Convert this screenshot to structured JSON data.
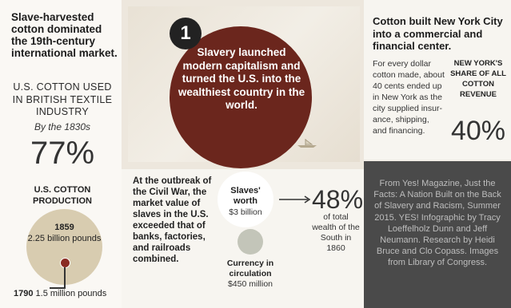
{
  "left": {
    "intro": "Slave-harvested cotton dominated the 19th-century international market.",
    "cotton_used": "U.S. COTTON USED IN BRITISH TEXTILE INDUSTRY",
    "by_1830s": "By the 1830s",
    "pct": "77%",
    "cotton_production": "U.S. COTTON PRODUCTION",
    "year_1859": "1859",
    "amount_1859": "2.25 billion pounds",
    "year_1790": "1790",
    "amount_1790": "1.5 million pounds"
  },
  "middle": {
    "number": "1",
    "headline": "Slavery launched modern capitalism and turned the U.S. into the wealthiest country in the world.",
    "civil_war": "At the outbreak of the Civil War, the market value of slaves in the U.S. exceeded that of banks, factories, and railroads combined.",
    "slaves_worth_label": "Slaves' worth",
    "slaves_worth_value": "$3 billion",
    "currency_label": "Currency in circulation",
    "currency_value": "$450 million",
    "pct": "48%",
    "pct_caption": "of total wealth of the South in 1860"
  },
  "right": {
    "title": "Cotton built New York City into a commercial and financial center.",
    "body": "For every dollar cotton made, about 40 cents ended up in New York as the city supplied insur-ance, shipping, and financing.",
    "share_label": "NEW YORK'S SHARE OF ALL COTTON REVENUE",
    "pct": "40%"
  },
  "credit": "From Yes! Magazine, Just the Facts: A Nation Built on the Back of Slavery and Racism, Summer 2015. YES! Infographic by Tracy Loeffelholz Dunn and Jeff Neumann. Research by Heidi Bruce and Clo Copass. Images from Library of Congress.",
  "colors": {
    "slavery_circle": "#6b261d",
    "cotton_circle": "#d8ccb0",
    "credit_bg": "#4a4a4a"
  }
}
